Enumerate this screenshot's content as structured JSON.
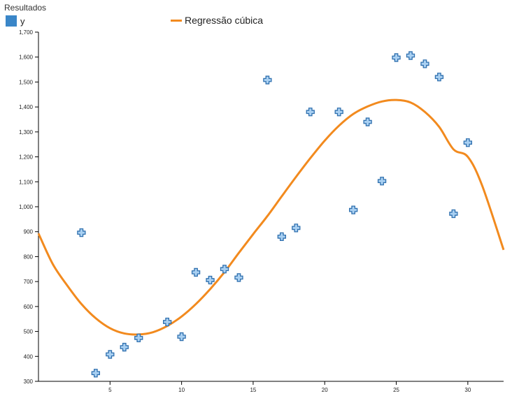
{
  "chart_data": {
    "type": "scatter",
    "title": "Resultados",
    "xlabel": "",
    "ylabel": "",
    "xlim": [
      0,
      32.5
    ],
    "ylim": [
      300,
      1700
    ],
    "x_ticks": [
      5,
      10,
      15,
      20,
      25,
      30
    ],
    "y_ticks": [
      300,
      400,
      500,
      600,
      700,
      800,
      900,
      1000,
      1100,
      1200,
      1300,
      1400,
      1500,
      1600,
      1700
    ],
    "grid": false,
    "series": [
      {
        "name": "y",
        "type": "scatter",
        "color": "#3a86c8",
        "marker": "plus",
        "x": [
          3,
          4,
          5,
          6,
          7,
          9,
          10,
          11,
          12,
          13,
          14,
          16,
          17,
          18,
          19,
          21,
          22,
          23,
          24,
          25,
          26,
          27,
          28,
          29,
          30
        ],
        "y": [
          896,
          333,
          408,
          437,
          474,
          538,
          479,
          737,
          706,
          750,
          716,
          1508,
          880,
          915,
          1380,
          1380,
          987,
          1340,
          1103,
          1598,
          1606,
          1573,
          1520,
          972,
          1257
        ]
      },
      {
        "name": "Regressão cúbica",
        "type": "line",
        "color": "#f28a1e",
        "x": [
          0,
          1,
          2,
          3,
          4,
          5,
          6,
          7,
          8,
          9,
          10,
          11,
          12,
          13,
          14,
          15,
          16,
          17,
          18,
          19,
          20,
          21,
          22,
          23,
          24,
          25,
          26,
          27,
          28,
          29,
          30,
          31,
          32.5
        ],
        "y": [
          893,
          770,
          685,
          610,
          553,
          513,
          492,
          488,
          497,
          522,
          560,
          610,
          670,
          738,
          815,
          890,
          963,
          1042,
          1120,
          1195,
          1265,
          1325,
          1372,
          1402,
          1422,
          1428,
          1418,
          1380,
          1320,
          1230,
          1200,
          1085,
          827
        ]
      }
    ],
    "legend": "top-left"
  }
}
